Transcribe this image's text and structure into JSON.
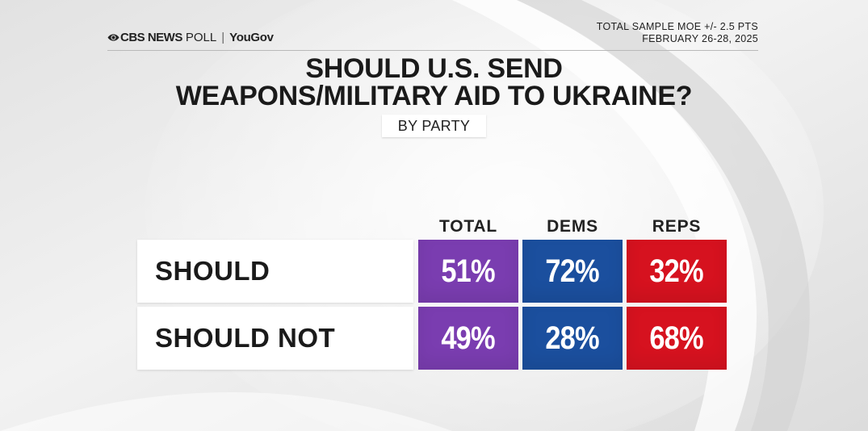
{
  "header": {
    "logo_cbs": "CBS NEWS",
    "logo_poll": "POLL",
    "logo_separator": "|",
    "logo_yougov": "YouGov",
    "moe": "TOTAL SAMPLE MOE +/- 2.5 PTS",
    "dates": "FEBRUARY 26-28, 2025"
  },
  "title_line1": "SHOULD U.S. SEND",
  "title_line2": "WEAPONS/MILITARY AID TO UKRAINE?",
  "subtitle": "BY PARTY",
  "chart_data": {
    "type": "table",
    "title": "SHOULD U.S. SEND WEAPONS/MILITARY AID TO UKRAINE?",
    "subtitle": "BY PARTY",
    "columns": [
      "TOTAL",
      "DEMS",
      "REPS"
    ],
    "rows": [
      {
        "label": "SHOULD",
        "values": [
          "51%",
          "72%",
          "32%"
        ]
      },
      {
        "label": "SHOULD NOT",
        "values": [
          "49%",
          "28%",
          "68%"
        ]
      }
    ],
    "column_colors": [
      "#7a3db0",
      "#1b4f9e",
      "#d6121f"
    ]
  }
}
